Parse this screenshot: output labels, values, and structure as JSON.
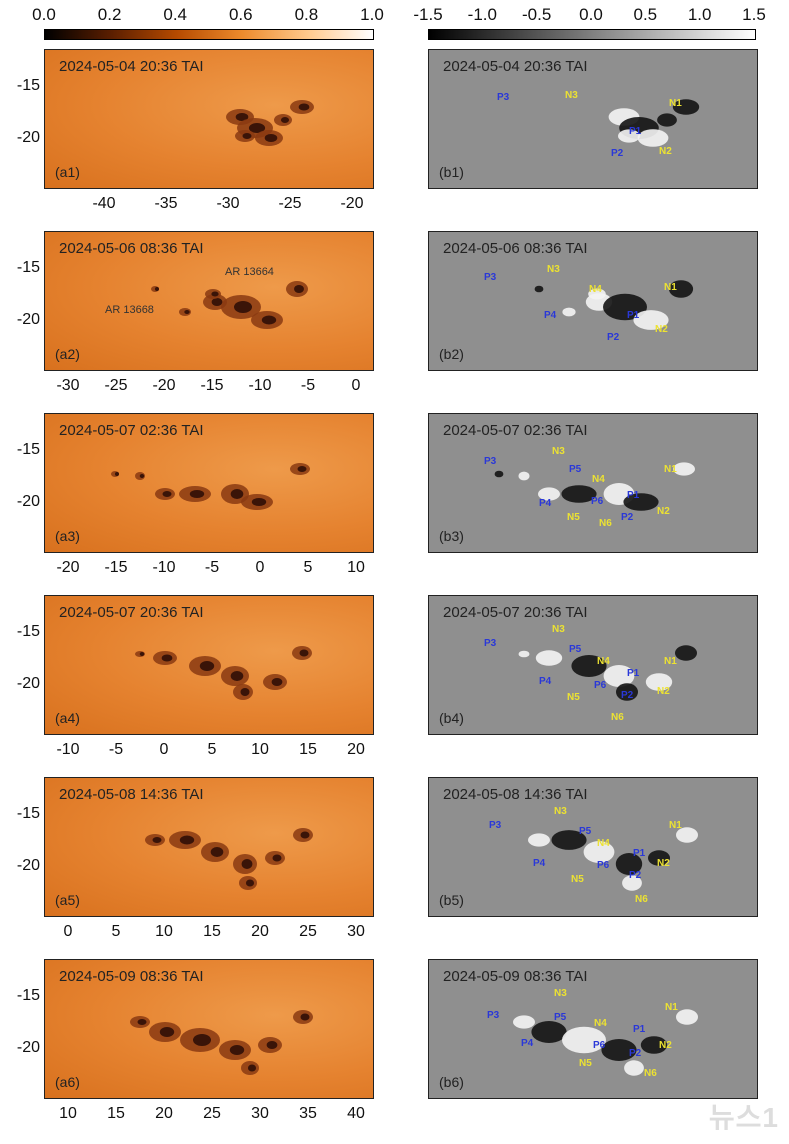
{
  "colorbars": {
    "left": {
      "ticks": [
        "0.0",
        "0.2",
        "0.4",
        "0.6",
        "0.8",
        "1.0"
      ]
    },
    "right": {
      "ticks": [
        "-1.5",
        "-1.0",
        "-0.5",
        "0.0",
        "0.5",
        "1.0",
        "1.5"
      ]
    }
  },
  "rows": [
    {
      "time": "2024-05-04 20:36 TAI",
      "label_a": "(a1)",
      "label_b": "(b1)",
      "yticks": [
        "-15",
        "-20"
      ],
      "xticks": [
        "-40",
        "-35",
        "-30",
        "-25",
        "-20"
      ],
      "ars": [],
      "pol": [
        {
          "t": "P3",
          "c": "p"
        },
        {
          "t": "N3",
          "c": "n"
        },
        {
          "t": "N1",
          "c": "n"
        },
        {
          "t": "P1",
          "c": "p"
        },
        {
          "t": "P2",
          "c": "p"
        },
        {
          "t": "N2",
          "c": "n"
        }
      ]
    },
    {
      "time": "2024-05-06 08:36 TAI",
      "label_a": "(a2)",
      "label_b": "(b2)",
      "yticks": [
        "-15",
        "-20"
      ],
      "xticks": [
        "-30",
        "-25",
        "-20",
        "-15",
        "-10",
        "-5",
        "0"
      ],
      "ars": [
        "AR 13664",
        "AR 13668"
      ],
      "pol": [
        {
          "t": "P3",
          "c": "p"
        },
        {
          "t": "N3",
          "c": "n"
        },
        {
          "t": "N4",
          "c": "n"
        },
        {
          "t": "N1",
          "c": "n"
        },
        {
          "t": "P4",
          "c": "p"
        },
        {
          "t": "P1",
          "c": "p"
        },
        {
          "t": "N2",
          "c": "n"
        },
        {
          "t": "P2",
          "c": "p"
        }
      ]
    },
    {
      "time": "2024-05-07 02:36 TAI",
      "label_a": "(a3)",
      "label_b": "(b3)",
      "yticks": [
        "-15",
        "-20"
      ],
      "xticks": [
        "-20",
        "-15",
        "-10",
        "-5",
        "0",
        "5",
        "10"
      ],
      "ars": [],
      "pol": [
        {
          "t": "P3",
          "c": "p"
        },
        {
          "t": "N3",
          "c": "n"
        },
        {
          "t": "P5",
          "c": "p"
        },
        {
          "t": "N4",
          "c": "n"
        },
        {
          "t": "N1",
          "c": "n"
        },
        {
          "t": "P4",
          "c": "p"
        },
        {
          "t": "P6",
          "c": "p"
        },
        {
          "t": "P1",
          "c": "p"
        },
        {
          "t": "N5",
          "c": "n"
        },
        {
          "t": "N6",
          "c": "n"
        },
        {
          "t": "P2",
          "c": "p"
        },
        {
          "t": "N2",
          "c": "n"
        }
      ]
    },
    {
      "time": "2024-05-07 20:36 TAI",
      "label_a": "(a4)",
      "label_b": "(b4)",
      "yticks": [
        "-15",
        "-20"
      ],
      "xticks": [
        "-10",
        "-5",
        "0",
        "5",
        "10",
        "15",
        "20"
      ],
      "ars": [],
      "pol": [
        {
          "t": "P3",
          "c": "p"
        },
        {
          "t": "N3",
          "c": "n"
        },
        {
          "t": "P5",
          "c": "p"
        },
        {
          "t": "N4",
          "c": "n"
        },
        {
          "t": "P1",
          "c": "p"
        },
        {
          "t": "N1",
          "c": "n"
        },
        {
          "t": "P4",
          "c": "p"
        },
        {
          "t": "P6",
          "c": "p"
        },
        {
          "t": "N5",
          "c": "n"
        },
        {
          "t": "P2",
          "c": "p"
        },
        {
          "t": "N2",
          "c": "n"
        },
        {
          "t": "N6",
          "c": "n"
        }
      ]
    },
    {
      "time": "2024-05-08 14:36 TAI",
      "label_a": "(a5)",
      "label_b": "(b5)",
      "yticks": [
        "-15",
        "-20"
      ],
      "xticks": [
        "0",
        "5",
        "10",
        "15",
        "20",
        "25",
        "30"
      ],
      "ars": [],
      "pol": [
        {
          "t": "P3",
          "c": "p"
        },
        {
          "t": "N3",
          "c": "n"
        },
        {
          "t": "P5",
          "c": "p"
        },
        {
          "t": "N1",
          "c": "n"
        },
        {
          "t": "N4",
          "c": "n"
        },
        {
          "t": "P1",
          "c": "p"
        },
        {
          "t": "P4",
          "c": "p"
        },
        {
          "t": "P6",
          "c": "p"
        },
        {
          "t": "N2",
          "c": "n"
        },
        {
          "t": "N5",
          "c": "n"
        },
        {
          "t": "P2",
          "c": "p"
        },
        {
          "t": "N6",
          "c": "n"
        }
      ]
    },
    {
      "time": "2024-05-09 08:36 TAI",
      "label_a": "(a6)",
      "label_b": "(b6)",
      "yticks": [
        "-15",
        "-20"
      ],
      "xticks": [
        "10",
        "15",
        "20",
        "25",
        "30",
        "35",
        "40"
      ],
      "ars": [],
      "pol": [
        {
          "t": "N3",
          "c": "n"
        },
        {
          "t": "P3",
          "c": "p"
        },
        {
          "t": "P5",
          "c": "p"
        },
        {
          "t": "N4",
          "c": "n"
        },
        {
          "t": "P1",
          "c": "p"
        },
        {
          "t": "N1",
          "c": "n"
        },
        {
          "t": "P4",
          "c": "p"
        },
        {
          "t": "P6",
          "c": "p"
        },
        {
          "t": "P2",
          "c": "p"
        },
        {
          "t": "N2",
          "c": "n"
        },
        {
          "t": "N5",
          "c": "n"
        },
        {
          "t": "N6",
          "c": "n"
        }
      ]
    }
  ],
  "watermark": "뉴스1"
}
